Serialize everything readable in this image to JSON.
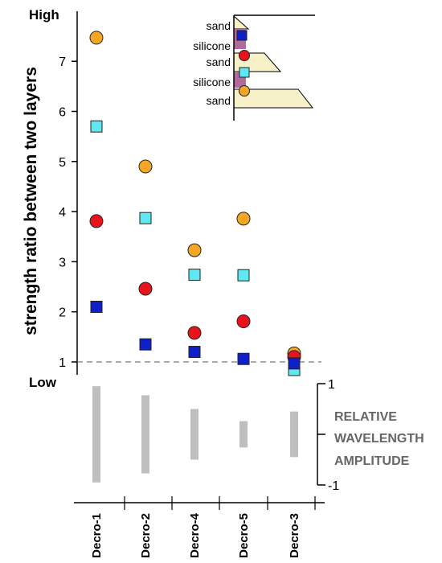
{
  "chart_data": [
    {
      "type": "scatter",
      "title": "",
      "ylabel": "strength ratio between two layers",
      "y_high_label": "High",
      "y_low_label": "Low",
      "ylim": [
        0.6,
        8.0
      ],
      "yticks": [
        "1",
        "2",
        "3",
        "4",
        "5",
        "6",
        "7"
      ],
      "reference_line": 1,
      "categories": [
        "Decro-1",
        "Decro-2",
        "Decro-4",
        "Decro-5",
        "Decro-3"
      ],
      "series": [
        {
          "key": "orange",
          "marker": "circle",
          "color": "#f5a623",
          "values": [
            7.47,
            4.9,
            3.23,
            3.86,
            1.17
          ]
        },
        {
          "key": "cyan",
          "marker": "square",
          "color": "#5ee8f2",
          "values": [
            5.7,
            3.87,
            2.74,
            2.73,
            0.84
          ]
        },
        {
          "key": "red",
          "marker": "circle",
          "color": "#e8141b",
          "values": [
            3.81,
            2.46,
            1.58,
            1.81,
            1.1
          ]
        },
        {
          "key": "blue",
          "marker": "square",
          "color": "#1020c8",
          "values": [
            2.1,
            1.35,
            1.2,
            1.06,
            0.97
          ]
        }
      ]
    },
    {
      "type": "bar",
      "label_lines": [
        "RELATIVE",
        "WAVELENGTH",
        "AMPLITUDE"
      ],
      "ylim": [
        -1,
        1
      ],
      "yticks": [
        "1",
        "-1"
      ],
      "categories": [
        "Decro-1",
        "Decro-2",
        "Decro-4",
        "Decro-5",
        "Decro-3"
      ],
      "ranges": [
        [
          -0.95,
          0.95
        ],
        [
          -0.77,
          0.77
        ],
        [
          -0.5,
          0.5
        ],
        [
          -0.26,
          0.26
        ],
        [
          -0.45,
          0.45
        ]
      ],
      "color": "#bfbfbf"
    }
  ],
  "legend_inset": {
    "layers": [
      "sand",
      "silicone",
      "sand",
      "silicone",
      "sand"
    ],
    "sand_color": "#f7f1c9",
    "silicone_color": "#b06a9c"
  }
}
